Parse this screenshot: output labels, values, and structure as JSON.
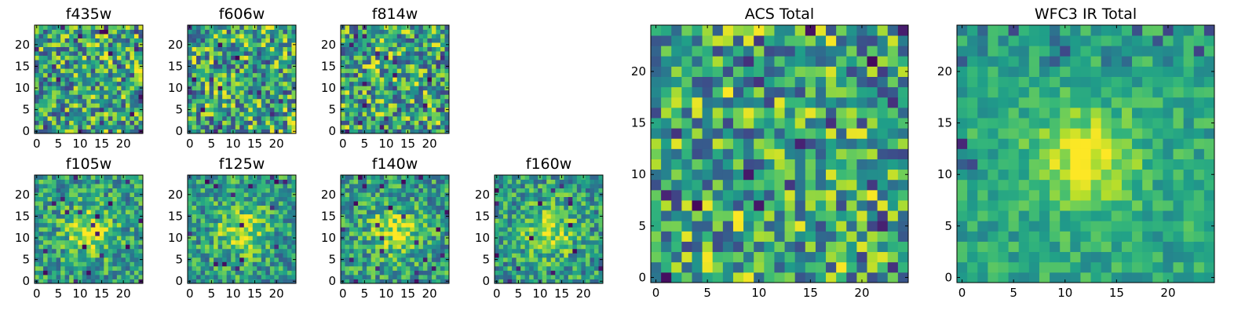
{
  "chart_data": [
    {
      "type": "heatmap",
      "title": "f435w",
      "grid_size": 25,
      "xlim": [
        0,
        24
      ],
      "ylim": [
        0,
        24
      ],
      "xticks": [
        0,
        5,
        10,
        15,
        20
      ],
      "yticks": [
        0,
        5,
        10,
        15,
        20
      ],
      "colormap": "viridis",
      "pattern": "noise",
      "seed": 11
    },
    {
      "type": "heatmap",
      "title": "f606w",
      "grid_size": 25,
      "xlim": [
        0,
        24
      ],
      "ylim": [
        0,
        24
      ],
      "xticks": [
        0,
        5,
        10,
        15,
        20
      ],
      "yticks": [
        0,
        5,
        10,
        15,
        20
      ],
      "colormap": "viridis",
      "pattern": "noise",
      "seed": 23
    },
    {
      "type": "heatmap",
      "title": "f814w",
      "grid_size": 25,
      "xlim": [
        0,
        24
      ],
      "ylim": [
        0,
        24
      ],
      "xticks": [
        0,
        5,
        10,
        15,
        20
      ],
      "yticks": [
        0,
        5,
        10,
        15,
        20
      ],
      "colormap": "viridis",
      "pattern": "noise",
      "seed": 37
    },
    {
      "type": "heatmap",
      "title": "f105w",
      "grid_size": 25,
      "xlim": [
        0,
        24
      ],
      "ylim": [
        0,
        24
      ],
      "xticks": [
        0,
        5,
        10,
        15,
        20
      ],
      "yticks": [
        0,
        5,
        10,
        15,
        20
      ],
      "colormap": "viridis",
      "pattern": "source",
      "seed": 41
    },
    {
      "type": "heatmap",
      "title": "f125w",
      "grid_size": 25,
      "xlim": [
        0,
        24
      ],
      "ylim": [
        0,
        24
      ],
      "xticks": [
        0,
        5,
        10,
        15,
        20
      ],
      "yticks": [
        0,
        5,
        10,
        15,
        20
      ],
      "colormap": "viridis",
      "pattern": "source",
      "seed": 53
    },
    {
      "type": "heatmap",
      "title": "f140w",
      "grid_size": 25,
      "xlim": [
        0,
        24
      ],
      "ylim": [
        0,
        24
      ],
      "xticks": [
        0,
        5,
        10,
        15,
        20
      ],
      "yticks": [
        0,
        5,
        10,
        15,
        20
      ],
      "colormap": "viridis",
      "pattern": "source",
      "seed": 67
    },
    {
      "type": "heatmap",
      "title": "f160w",
      "grid_size": 25,
      "xlim": [
        0,
        24
      ],
      "ylim": [
        0,
        24
      ],
      "xticks": [
        0,
        5,
        10,
        15,
        20
      ],
      "yticks": [
        0,
        5,
        10,
        15,
        20
      ],
      "colormap": "viridis",
      "pattern": "source",
      "seed": 79
    },
    {
      "type": "heatmap",
      "title": "ACS Total",
      "grid_size": 25,
      "xlim": [
        0,
        24
      ],
      "ylim": [
        0,
        24
      ],
      "xticks": [
        0,
        5,
        10,
        15,
        20
      ],
      "yticks": [
        0,
        5,
        10,
        15,
        20
      ],
      "colormap": "viridis",
      "pattern": "noise",
      "seed": 97
    },
    {
      "type": "heatmap",
      "title": "WFC3 IR Total",
      "grid_size": 25,
      "xlim": [
        0,
        24
      ],
      "ylim": [
        0,
        24
      ],
      "xticks": [
        0,
        5,
        10,
        15,
        20
      ],
      "yticks": [
        0,
        5,
        10,
        15,
        20
      ],
      "colormap": "viridis",
      "pattern": "source_strong",
      "seed": 113
    }
  ]
}
